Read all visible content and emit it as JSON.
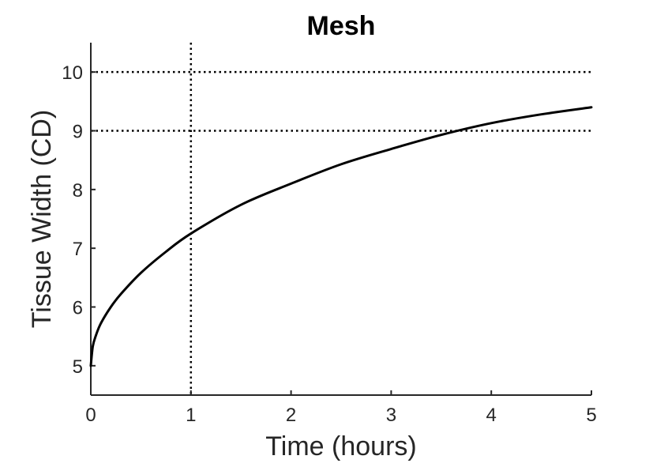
{
  "chart_data": {
    "type": "line",
    "title": "Mesh",
    "xlabel": "Time (hours)",
    "ylabel": "Tissue Width (CD)",
    "xlim": [
      0,
      5
    ],
    "ylim": [
      4.5,
      10.5
    ],
    "xticks": [
      0,
      1,
      2,
      3,
      4,
      5
    ],
    "yticks": [
      5,
      6,
      7,
      8,
      9,
      10
    ],
    "xtick_labels": [
      "0",
      "1",
      "2",
      "3",
      "4",
      "5"
    ],
    "ytick_labels": [
      "5",
      "6",
      "7",
      "8",
      "9",
      "10"
    ],
    "grid": false,
    "reference_lines": {
      "horizontal": [
        10,
        9
      ],
      "vertical": [
        1
      ],
      "style": "dotted",
      "color": "#000000"
    },
    "series": [
      {
        "color": "#000000",
        "x": [
          0,
          0.02,
          0.05,
          0.1,
          0.2,
          0.3,
          0.5,
          0.75,
          1,
          1.5,
          2,
          2.5,
          3,
          3.5,
          4,
          4.5,
          5
        ],
        "y": [
          5.0,
          5.33,
          5.51,
          5.72,
          6.0,
          6.22,
          6.58,
          6.94,
          7.25,
          7.74,
          8.1,
          8.43,
          8.69,
          8.93,
          9.13,
          9.28,
          9.4
        ]
      }
    ]
  }
}
